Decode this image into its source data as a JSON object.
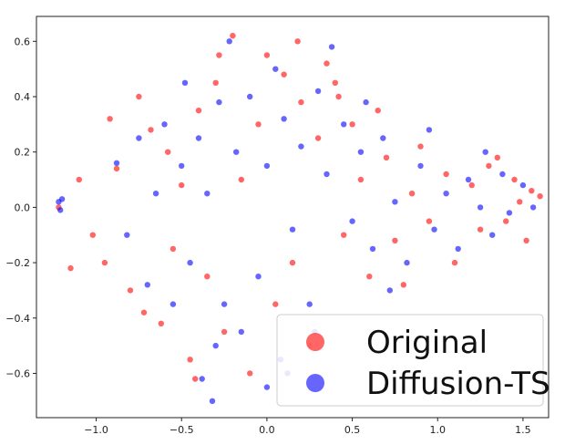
{
  "chart_data": {
    "type": "scatter",
    "title": "",
    "xlabel": "",
    "ylabel": "",
    "xlim": [
      -1.35,
      1.65
    ],
    "ylim": [
      -0.76,
      0.69
    ],
    "x_ticks": [
      -1.0,
      -0.5,
      0.0,
      0.5,
      1.0,
      1.5
    ],
    "y_ticks": [
      0.6,
      0.4,
      0.2,
      0.0,
      -0.2,
      -0.4,
      -0.6
    ],
    "x_tick_labels": [
      "−1.0",
      "−0.5",
      "0.0",
      "0.5",
      "1.0",
      "1.5"
    ],
    "y_tick_labels": [
      "0.6",
      "0.4",
      "0.2",
      "0.0",
      "−0.2",
      "−0.4",
      "−0.6"
    ],
    "grid": false,
    "legend_position": "bottom-right",
    "series": [
      {
        "name": "Original",
        "color": "#ff0000",
        "points": [
          [
            -1.22,
            0.0
          ],
          [
            -1.15,
            -0.22
          ],
          [
            -1.1,
            0.1
          ],
          [
            -1.02,
            -0.1
          ],
          [
            -0.95,
            -0.2
          ],
          [
            -0.92,
            0.32
          ],
          [
            -0.88,
            0.14
          ],
          [
            -0.8,
            -0.3
          ],
          [
            -0.75,
            0.4
          ],
          [
            -0.72,
            -0.38
          ],
          [
            -0.68,
            0.28
          ],
          [
            -0.62,
            -0.42
          ],
          [
            -0.58,
            0.2
          ],
          [
            -0.55,
            -0.15
          ],
          [
            -0.5,
            0.08
          ],
          [
            -0.45,
            -0.55
          ],
          [
            -0.4,
            0.35
          ],
          [
            -0.35,
            -0.25
          ],
          [
            -0.3,
            0.45
          ],
          [
            -0.25,
            -0.45
          ],
          [
            -0.2,
            0.62
          ],
          [
            -0.15,
            0.1
          ],
          [
            -0.1,
            -0.6
          ],
          [
            -0.05,
            0.3
          ],
          [
            0.0,
            0.55
          ],
          [
            0.05,
            -0.35
          ],
          [
            0.1,
            0.48
          ],
          [
            0.15,
            -0.2
          ],
          [
            0.2,
            0.38
          ],
          [
            0.25,
            -0.5
          ],
          [
            0.3,
            0.25
          ],
          [
            0.35,
            0.52
          ],
          [
            0.4,
            0.45
          ],
          [
            0.45,
            -0.1
          ],
          [
            0.5,
            0.3
          ],
          [
            0.55,
            0.1
          ],
          [
            0.6,
            -0.25
          ],
          [
            0.7,
            0.18
          ],
          [
            0.75,
            -0.12
          ],
          [
            0.85,
            0.05
          ],
          [
            0.95,
            -0.05
          ],
          [
            1.05,
            0.12
          ],
          [
            1.1,
            -0.2
          ],
          [
            1.2,
            0.08
          ],
          [
            1.25,
            -0.08
          ],
          [
            1.3,
            0.15
          ],
          [
            1.4,
            -0.05
          ],
          [
            1.48,
            0.02
          ],
          [
            1.55,
            0.06
          ],
          [
            1.6,
            0.04
          ],
          [
            1.52,
            -0.12
          ],
          [
            1.45,
            0.1
          ],
          [
            1.35,
            0.18
          ],
          [
            0.9,
            0.22
          ],
          [
            0.8,
            -0.28
          ],
          [
            0.65,
            0.35
          ],
          [
            0.42,
            0.4
          ],
          [
            0.18,
            0.6
          ],
          [
            -0.28,
            0.55
          ],
          [
            -0.42,
            -0.62
          ]
        ]
      },
      {
        "name": "Diffusion-TS",
        "color": "#0000ff",
        "points": [
          [
            -1.22,
            0.02
          ],
          [
            -1.21,
            -0.01
          ],
          [
            -1.2,
            0.03
          ],
          [
            -0.88,
            0.16
          ],
          [
            -0.82,
            -0.1
          ],
          [
            -0.75,
            0.25
          ],
          [
            -0.7,
            -0.28
          ],
          [
            -0.65,
            0.05
          ],
          [
            -0.6,
            0.3
          ],
          [
            -0.55,
            -0.35
          ],
          [
            -0.5,
            0.15
          ],
          [
            -0.45,
            -0.2
          ],
          [
            -0.4,
            0.25
          ],
          [
            -0.38,
            -0.62
          ],
          [
            -0.35,
            0.05
          ],
          [
            -0.3,
            -0.5
          ],
          [
            -0.28,
            0.38
          ],
          [
            -0.25,
            -0.35
          ],
          [
            -0.22,
            0.6
          ],
          [
            -0.18,
            0.2
          ],
          [
            -0.15,
            -0.45
          ],
          [
            -0.1,
            0.4
          ],
          [
            -0.05,
            -0.25
          ],
          [
            0.0,
            0.15
          ],
          [
            0.05,
            0.5
          ],
          [
            0.08,
            -0.55
          ],
          [
            0.1,
            0.32
          ],
          [
            0.15,
            -0.08
          ],
          [
            0.2,
            0.22
          ],
          [
            0.25,
            -0.35
          ],
          [
            0.3,
            0.42
          ],
          [
            0.35,
            0.12
          ],
          [
            0.38,
            0.58
          ],
          [
            0.45,
            0.3
          ],
          [
            0.5,
            -0.05
          ],
          [
            0.55,
            0.2
          ],
          [
            0.62,
            -0.15
          ],
          [
            0.68,
            0.25
          ],
          [
            0.75,
            0.02
          ],
          [
            0.82,
            -0.2
          ],
          [
            0.9,
            0.15
          ],
          [
            0.98,
            -0.08
          ],
          [
            1.05,
            0.05
          ],
          [
            1.12,
            -0.15
          ],
          [
            1.18,
            0.1
          ],
          [
            1.25,
            0.0
          ],
          [
            1.32,
            -0.1
          ],
          [
            1.38,
            0.12
          ],
          [
            1.42,
            -0.02
          ],
          [
            1.5,
            0.08
          ],
          [
            1.56,
            0.0
          ],
          [
            1.28,
            0.2
          ],
          [
            0.95,
            0.28
          ],
          [
            0.72,
            -0.3
          ],
          [
            0.58,
            0.38
          ],
          [
            0.28,
            -0.45
          ],
          [
            0.12,
            -0.6
          ],
          [
            -0.32,
            -0.7
          ],
          [
            -0.48,
            0.45
          ],
          [
            0.0,
            -0.65
          ]
        ]
      }
    ]
  },
  "legend": {
    "items": [
      {
        "label": "Original",
        "color": "#ff0000"
      },
      {
        "label": "Diffusion-TS",
        "color": "#0000ff"
      }
    ]
  }
}
